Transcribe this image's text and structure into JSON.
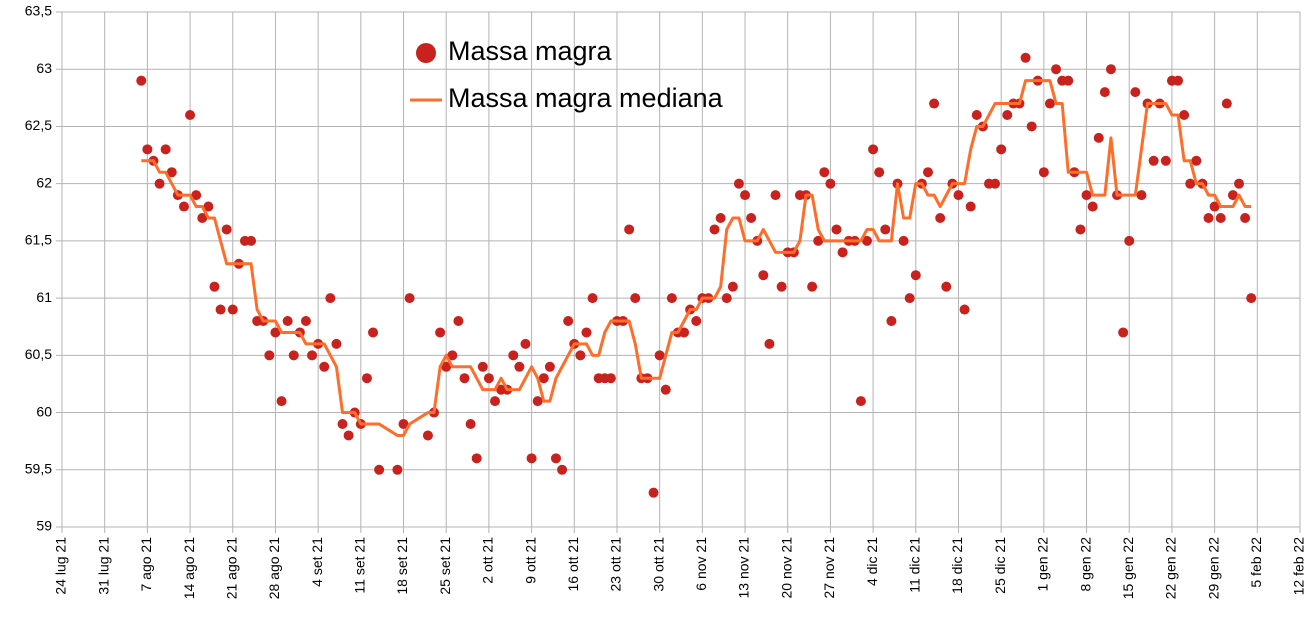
{
  "chart_data": {
    "type": "scatter-line",
    "x": [
      "2021-08-06",
      "2021-08-07",
      "2021-08-08",
      "2021-08-09",
      "2021-08-10",
      "2021-08-11",
      "2021-08-12",
      "2021-08-13",
      "2021-08-14",
      "2021-08-15",
      "2021-08-16",
      "2021-08-17",
      "2021-08-18",
      "2021-08-19",
      "2021-08-20",
      "2021-08-21",
      "2021-08-22",
      "2021-08-23",
      "2021-08-24",
      "2021-08-25",
      "2021-08-26",
      "2021-08-27",
      "2021-08-28",
      "2021-08-29",
      "2021-08-30",
      "2021-08-31",
      "2021-09-01",
      "2021-09-02",
      "2021-09-03",
      "2021-09-04",
      "2021-09-05",
      "2021-09-06",
      "2021-09-07",
      "2021-09-08",
      "2021-09-09",
      "2021-09-10",
      "2021-09-11",
      "2021-09-12",
      "2021-09-13",
      "2021-09-14",
      "2021-09-17",
      "2021-09-18",
      "2021-09-19",
      "2021-09-22",
      "2021-09-23",
      "2021-09-24",
      "2021-09-25",
      "2021-09-26",
      "2021-09-27",
      "2021-09-28",
      "2021-09-29",
      "2021-09-30",
      "2021-10-01",
      "2021-10-02",
      "2021-10-03",
      "2021-10-04",
      "2021-10-05",
      "2021-10-06",
      "2021-10-07",
      "2021-10-08",
      "2021-10-09",
      "2021-10-10",
      "2021-10-11",
      "2021-10-12",
      "2021-10-13",
      "2021-10-14",
      "2021-10-15",
      "2021-10-16",
      "2021-10-17",
      "2021-10-18",
      "2021-10-19",
      "2021-10-20",
      "2021-10-21",
      "2021-10-22",
      "2021-10-23",
      "2021-10-24",
      "2021-10-25",
      "2021-10-26",
      "2021-10-27",
      "2021-10-28",
      "2021-10-29",
      "2021-10-30",
      "2021-10-31",
      "2021-11-01",
      "2021-11-02",
      "2021-11-03",
      "2021-11-04",
      "2021-11-05",
      "2021-11-06",
      "2021-11-07",
      "2021-11-08",
      "2021-11-09",
      "2021-11-10",
      "2021-11-11",
      "2021-11-12",
      "2021-11-13",
      "2021-11-14",
      "2021-11-15",
      "2021-11-16",
      "2021-11-17",
      "2021-11-18",
      "2021-11-19",
      "2021-11-20",
      "2021-11-21",
      "2021-11-22",
      "2021-11-23",
      "2021-11-24",
      "2021-11-25",
      "2021-11-26",
      "2021-11-27",
      "2021-11-28",
      "2021-11-29",
      "2021-11-30",
      "2021-12-01",
      "2021-12-02",
      "2021-12-03",
      "2021-12-04",
      "2021-12-05",
      "2021-12-06",
      "2021-12-07",
      "2021-12-08",
      "2021-12-09",
      "2021-12-10",
      "2021-12-11",
      "2021-12-12",
      "2021-12-13",
      "2021-12-14",
      "2021-12-15",
      "2021-12-16",
      "2021-12-17",
      "2021-12-18",
      "2021-12-19",
      "2021-12-20",
      "2021-12-21",
      "2021-12-22",
      "2021-12-23",
      "2021-12-24",
      "2021-12-25",
      "2021-12-26",
      "2021-12-27",
      "2021-12-28",
      "2021-12-29",
      "2021-12-30",
      "2021-12-31",
      "2022-01-01",
      "2022-01-02",
      "2022-01-03",
      "2022-01-04",
      "2022-01-05",
      "2022-01-06",
      "2022-01-07",
      "2022-01-08",
      "2022-01-09",
      "2022-01-10",
      "2022-01-11",
      "2022-01-12",
      "2022-01-13",
      "2022-01-14",
      "2022-01-15",
      "2022-01-16",
      "2022-01-17",
      "2022-01-18",
      "2022-01-19",
      "2022-01-20",
      "2022-01-21",
      "2022-01-22",
      "2022-01-23",
      "2022-01-24",
      "2022-01-25",
      "2022-01-26",
      "2022-01-27",
      "2022-01-28",
      "2022-01-29",
      "2022-01-30",
      "2022-01-31",
      "2022-02-01",
      "2022-02-02",
      "2022-02-03",
      "2022-02-04"
    ],
    "series": [
      {
        "name": "Massa magra",
        "color": "#c9211e",
        "mark": "point",
        "values": [
          62.9,
          62.3,
          62.2,
          62,
          62.3,
          62.1,
          61.9,
          61.8,
          62.6,
          61.9,
          61.7,
          61.8,
          61.1,
          60.9,
          61.6,
          60.9,
          61.3,
          61.5,
          61.5,
          60.8,
          60.8,
          60.5,
          60.7,
          60.1,
          60.8,
          60.5,
          60.7,
          60.8,
          60.5,
          60.6,
          60.4,
          61,
          60.6,
          59.9,
          59.8,
          60,
          59.9,
          60.3,
          60.7,
          59.5,
          59.5,
          59.9,
          61,
          59.8,
          60,
          60.7,
          60.4,
          60.5,
          60.8,
          60.3,
          59.9,
          59.6,
          60.4,
          60.3,
          60.1,
          60.2,
          60.2,
          60.5,
          60.4,
          60.6,
          59.6,
          60.1,
          60.3,
          60.4,
          59.6,
          59.5,
          60.8,
          60.6,
          60.5,
          60.7,
          61,
          60.3,
          60.3,
          60.3,
          60.8,
          60.8,
          61.6,
          61,
          60.3,
          60.3,
          59.3,
          60.5,
          60.2,
          61,
          60.7,
          60.7,
          60.9,
          60.8,
          61,
          61,
          61.6,
          61.7,
          61,
          61.1,
          62,
          61.9,
          61.7,
          61.5,
          61.2,
          60.6,
          61.9,
          61.1,
          61.4,
          61.4,
          61.9,
          61.9,
          61.1,
          61.5,
          62.1,
          62,
          61.6,
          61.4,
          61.5,
          61.5,
          60.1,
          61.5,
          62.3,
          62.1,
          61.6,
          60.8,
          62,
          61.5,
          61,
          61.2,
          62,
          62.1,
          62.7,
          61.7,
          61.1,
          62,
          61.9,
          60.9,
          61.8,
          62.6,
          62.5,
          62,
          62,
          62.3,
          62.6,
          62.7,
          62.7,
          63.1,
          62.5,
          62.9,
          62.1,
          62.7,
          63,
          62.9,
          62.9,
          62.1,
          61.6,
          61.9,
          61.8,
          62.4,
          62.8,
          63,
          61.9,
          60.7,
          61.5,
          62.8,
          61.9,
          62.7,
          62.2,
          62.7,
          62.2,
          62.9,
          62.9,
          62.6,
          62,
          62.2,
          62,
          61.7,
          61.8,
          61.7,
          62.7,
          61.9,
          62,
          61.7,
          61
        ]
      },
      {
        "name": "Massa magra mediana",
        "color": "#ff6d2a",
        "mark": "line",
        "values": [
          62.2,
          62.2,
          62.2,
          62.1,
          62.1,
          62,
          61.9,
          61.9,
          61.9,
          61.8,
          61.8,
          61.7,
          61.7,
          61.5,
          61.3,
          61.3,
          61.3,
          61.3,
          61.3,
          60.9,
          60.8,
          60.8,
          60.8,
          60.7,
          60.7,
          60.7,
          60.7,
          60.6,
          60.6,
          60.6,
          60.6,
          60.5,
          60.4,
          60,
          60,
          60,
          59.9,
          59.9,
          59.9,
          59.9,
          59.8,
          59.8,
          59.9,
          60,
          60,
          60.4,
          60.5,
          60.4,
          60.4,
          60.4,
          60.4,
          60.3,
          60.2,
          60.2,
          60.2,
          60.3,
          60.2,
          60.2,
          60.2,
          60.3,
          60.4,
          60.3,
          60.1,
          60.1,
          60.3,
          60.4,
          60.5,
          60.6,
          60.6,
          60.6,
          60.5,
          60.5,
          60.7,
          60.8,
          60.8,
          60.8,
          60.8,
          60.6,
          60.3,
          60.3,
          60.3,
          60.3,
          60.5,
          60.7,
          60.7,
          60.8,
          60.9,
          60.9,
          61,
          61,
          61,
          61.1,
          61.6,
          61.7,
          61.7,
          61.5,
          61.5,
          61.5,
          61.6,
          61.5,
          61.4,
          61.4,
          61.4,
          61.4,
          61.5,
          61.9,
          61.9,
          61.6,
          61.5,
          61.5,
          61.5,
          61.5,
          61.5,
          61.5,
          61.5,
          61.6,
          61.6,
          61.5,
          61.5,
          61.5,
          62,
          61.7,
          61.7,
          62,
          62,
          61.9,
          61.9,
          61.8,
          61.9,
          62,
          62,
          62,
          62.3,
          62.5,
          62.5,
          62.6,
          62.7,
          62.7,
          62.7,
          62.7,
          62.7,
          62.9,
          62.9,
          62.9,
          62.9,
          62.9,
          62.7,
          62.7,
          62.1,
          62.1,
          62.1,
          62.1,
          61.9,
          61.9,
          61.9,
          62.4,
          61.9,
          61.9,
          61.9,
          61.9,
          62.3,
          62.7,
          62.7,
          62.7,
          62.7,
          62.6,
          62.6,
          62.2,
          62.2,
          62,
          62,
          61.9,
          61.9,
          61.8,
          61.8,
          61.8,
          61.9,
          61.8,
          61.8
        ]
      }
    ],
    "xlim": [
      "2021-07-24",
      "2022-02-12"
    ],
    "xticks": [
      {
        "value": "2021-07-24",
        "label": "24 lug 21"
      },
      {
        "value": "2021-07-31",
        "label": "31 lug 21"
      },
      {
        "value": "2021-08-07",
        "label": "7 ago 21"
      },
      {
        "value": "2021-08-14",
        "label": "14 ago 21"
      },
      {
        "value": "2021-08-21",
        "label": "21 ago 21"
      },
      {
        "value": "2021-08-28",
        "label": "28 ago 21"
      },
      {
        "value": "2021-09-04",
        "label": "4 set 21"
      },
      {
        "value": "2021-09-11",
        "label": "11 set 21"
      },
      {
        "value": "2021-09-18",
        "label": "18 set 21"
      },
      {
        "value": "2021-09-25",
        "label": "25 set 21"
      },
      {
        "value": "2021-10-02",
        "label": "2 ott 21"
      },
      {
        "value": "2021-10-09",
        "label": "9 ott 21"
      },
      {
        "value": "2021-10-16",
        "label": "16 ott 21"
      },
      {
        "value": "2021-10-23",
        "label": "23 ott 21"
      },
      {
        "value": "2021-10-30",
        "label": "30 ott 21"
      },
      {
        "value": "2021-11-06",
        "label": "6 nov 21"
      },
      {
        "value": "2021-11-13",
        "label": "13 nov 21"
      },
      {
        "value": "2021-11-20",
        "label": "20 nov 21"
      },
      {
        "value": "2021-11-27",
        "label": "27 nov 21"
      },
      {
        "value": "2021-12-04",
        "label": "4 dic 21"
      },
      {
        "value": "2021-12-11",
        "label": "11 dic 21"
      },
      {
        "value": "2021-12-18",
        "label": "18 dic 21"
      },
      {
        "value": "2021-12-25",
        "label": "25 dic 21"
      },
      {
        "value": "2022-01-01",
        "label": "1 gen 22"
      },
      {
        "value": "2022-01-08",
        "label": "8 gen 22"
      },
      {
        "value": "2022-01-15",
        "label": "15 gen 22"
      },
      {
        "value": "2022-01-22",
        "label": "22 gen 22"
      },
      {
        "value": "2022-01-29",
        "label": "29 gen 22"
      },
      {
        "value": "2022-02-05",
        "label": "5 feb 22"
      },
      {
        "value": "2022-02-12",
        "label": "12 feb 22"
      }
    ],
    "ylim": [
      59,
      63.5
    ],
    "yticks": [
      59,
      {
        "value": 59.5,
        "label": "59,5"
      },
      60,
      {
        "value": 60.5,
        "label": "60,5"
      },
      61,
      {
        "value": 61.5,
        "label": "61,5"
      },
      62,
      {
        "value": 62.5,
        "label": "62,5"
      },
      63,
      {
        "value": 63.5,
        "label": "63,5"
      }
    ],
    "grid": true
  }
}
